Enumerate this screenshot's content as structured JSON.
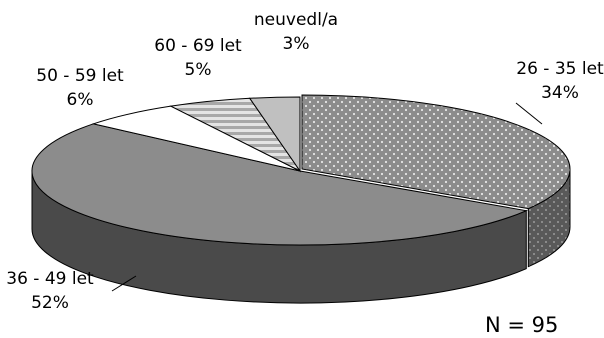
{
  "chart_data": {
    "type": "pie",
    "style": "3d-exploded-ellipse",
    "sample_note": "N = 95",
    "slices": [
      {
        "name": "26 - 35 let",
        "value": 34,
        "label_pct": "34%",
        "fill": "pattern-dots"
      },
      {
        "name": "36 - 49 let",
        "value": 52,
        "label_pct": "52%",
        "fill": "#8c8c8c"
      },
      {
        "name": "50 - 59 let",
        "value": 6,
        "label_pct": "6%",
        "fill": "#ffffff"
      },
      {
        "name": "60 - 69 let",
        "value": 5,
        "label_pct": "5%",
        "fill": "pattern-hstripes"
      },
      {
        "name": "neuvedl/a",
        "value": 3,
        "label_pct": "3%",
        "fill": "#c0c0c0"
      }
    ],
    "colors": {
      "dots_base": "#8c8c8c",
      "dots_dot": "#e6e6e6",
      "stripe_a": "#b4b4b4",
      "stripe_b": "#e4e4e4",
      "large_top": "#8c8c8c",
      "large_side": "#4a4a4a",
      "side_dots_base": "#595959",
      "outline": "#000000"
    }
  }
}
